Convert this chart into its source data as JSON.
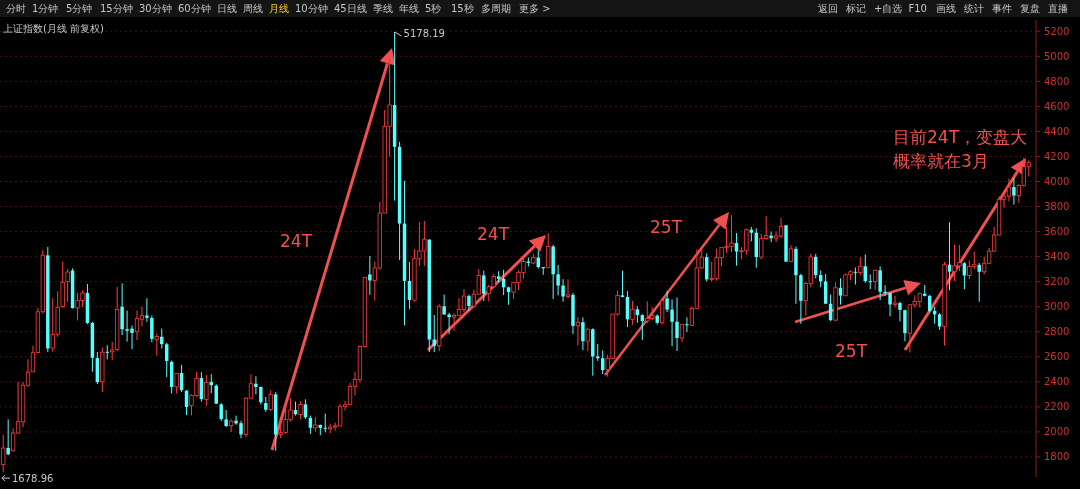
{
  "chart_data": {
    "type": "candlestick",
    "title": "上证指数(月线 前复权)",
    "ylim": [
      1640,
      5290
    ],
    "yticks": [
      1800,
      2000,
      2200,
      2400,
      2600,
      2800,
      3000,
      3200,
      3400,
      3600,
      3800,
      4000,
      4200,
      4400,
      4600,
      4800,
      5000,
      5200
    ],
    "grid": "y",
    "annotations": [
      "24T",
      "24T",
      "25T",
      "25T",
      "目前24T，变盘大概率就在3月",
      "5178.19",
      "1678.96",
      "分时",
      "1分钟",
      "5分钟",
      "15分钟",
      "30分钟",
      "60分钟",
      "日线",
      "周线",
      "月线",
      "10分钟",
      "45日线",
      "季线",
      "年线",
      "5秒",
      "15秒",
      "多周期",
      "更多 >",
      "直播",
      "复盘",
      "事件",
      "统计",
      "画线",
      "F10",
      "+自选",
      "标记",
      "返回"
    ],
    "categories": [
      null,
      null,
      null,
      null,
      null,
      null,
      null,
      null,
      null,
      null,
      null,
      null,
      null,
      null,
      null,
      null,
      null,
      null,
      null,
      null,
      null,
      null,
      null,
      null,
      null,
      null,
      null,
      null,
      null,
      null,
      null,
      null,
      null,
      null,
      null,
      null,
      null,
      null,
      null,
      null,
      null,
      null,
      null,
      null,
      null,
      null,
      null,
      null,
      null,
      null,
      null,
      null,
      null,
      null,
      null,
      null,
      null,
      null,
      null,
      null,
      null,
      null,
      null,
      null,
      null,
      null,
      null,
      null,
      null,
      null,
      null,
      null,
      null,
      null,
      null,
      null,
      null,
      null,
      null,
      null,
      null,
      null,
      null,
      null,
      null,
      null,
      null,
      null,
      null,
      null,
      null,
      null,
      null,
      null,
      null,
      null,
      null,
      null,
      null,
      null,
      null,
      null,
      null,
      null,
      null,
      null,
      null,
      null,
      null,
      null,
      null,
      null,
      null,
      null,
      null,
      null,
      null,
      null,
      null,
      null,
      null,
      null,
      null,
      null,
      null,
      null,
      null,
      null,
      null,
      null,
      null,
      null,
      null,
      null,
      null,
      null,
      null,
      null,
      null,
      null,
      null,
      null,
      null,
      null,
      null,
      null,
      null,
      null,
      null,
      null,
      null,
      null,
      null,
      null,
      null,
      null,
      null,
      null,
      null,
      null,
      null,
      null,
      null,
      null,
      null,
      null,
      null,
      null,
      null,
      null,
      null,
      null,
      null,
      null,
      null,
      null,
      null,
      null,
      null,
      null,
      null,
      null,
      null,
      null,
      null,
      null,
      null,
      null,
      null,
      null,
      null,
      null,
      null,
      null,
      null,
      null,
      null,
      null,
      null,
      null,
      null,
      null,
      null,
      null,
      null,
      null,
      null,
      null
    ],
    "ohlc": [
      [
        1740,
        1975,
        1678.96,
        1871
      ],
      [
        1872,
        2100,
        1814,
        1821
      ],
      [
        1850,
        2029,
        1844,
        1991
      ],
      [
        1991,
        2402,
        1985,
        2082
      ],
      [
        2080,
        2400,
        2037,
        2373
      ],
      [
        2373,
        2580,
        2360,
        2477
      ],
      [
        2480,
        2688,
        2480,
        2632
      ],
      [
        2635,
        2990,
        2630,
        2959
      ],
      [
        2960,
        3454,
        2945,
        3412
      ],
      [
        3410,
        3478,
        2639,
        2667
      ],
      [
        2670,
        3068,
        2640,
        2779
      ],
      [
        2780,
        3123,
        2760,
        2995
      ],
      [
        3000,
        3361,
        2990,
        3195
      ],
      [
        3200,
        3300,
        3039,
        3277
      ],
      [
        3289,
        3306,
        2986,
        2989
      ],
      [
        2990,
        3110,
        2890,
        3051
      ],
      [
        3050,
        3130,
        2997,
        3109
      ],
      [
        3110,
        3181,
        2861,
        2870
      ],
      [
        2870,
        2880,
        2481,
        2592
      ],
      [
        2590,
        2638,
        2382,
        2398
      ],
      [
        2400,
        2673,
        2319,
        2637
      ],
      [
        2640,
        2693,
        2579,
        2638
      ],
      [
        2640,
        2720,
        2573,
        2655
      ],
      [
        2660,
        3159,
        2646,
        2979
      ],
      [
        3000,
        3186,
        2773,
        2820
      ],
      [
        2820,
        2970,
        2721,
        2808
      ],
      [
        2825,
        2850,
        2661,
        2791
      ],
      [
        2800,
        2970,
        2734,
        2905
      ],
      [
        2900,
        3000,
        2842,
        2928
      ],
      [
        2930,
        3067,
        2880,
        2911
      ],
      [
        2910,
        2930,
        2717,
        2743
      ],
      [
        2740,
        2786,
        2610,
        2762
      ],
      [
        2760,
        2826,
        2666,
        2701
      ],
      [
        2700,
        2713,
        2437,
        2567
      ],
      [
        2560,
        2570,
        2307,
        2359
      ],
      [
        2360,
        2470,
        2307,
        2468
      ],
      [
        2470,
        2536,
        2319,
        2333
      ],
      [
        2330,
        2334,
        2134,
        2199
      ],
      [
        2212,
        2300,
        2132,
        2292
      ],
      [
        2290,
        2478,
        2280,
        2428
      ],
      [
        2430,
        2478,
        2242,
        2262
      ],
      [
        2260,
        2453,
        2210,
        2396
      ],
      [
        2400,
        2461,
        2310,
        2373
      ],
      [
        2370,
        2380,
        2225,
        2225
      ],
      [
        2220,
        2230,
        2085,
        2103
      ],
      [
        2100,
        2175,
        2040,
        2047
      ],
      [
        2050,
        2100,
        1999,
        2086
      ],
      [
        2090,
        2130,
        2058,
        2068
      ],
      [
        2070,
        2090,
        1949,
        1980
      ],
      [
        1980,
        2276,
        1959,
        2269
      ],
      [
        2270,
        2460,
        2260,
        2385
      ],
      [
        2385,
        2445,
        2300,
        2359
      ],
      [
        2360,
        2360,
        2218,
        2237
      ],
      [
        2230,
        2280,
        2161,
        2177
      ],
      [
        2180,
        2334,
        2167,
        2300
      ],
      [
        2300,
        2320,
        1849,
        1979
      ],
      [
        1980,
        2093,
        1951,
        1994
      ],
      [
        1995,
        2249,
        1985,
        2098
      ],
      [
        2100,
        2270,
        2082,
        2175
      ],
      [
        2175,
        2242,
        2131,
        2141
      ],
      [
        2140,
        2245,
        2101,
        2220
      ],
      [
        2220,
        2260,
        2102,
        2116
      ],
      [
        2112,
        2131,
        1984,
        2033
      ],
      [
        2033,
        2119,
        2002,
        2056
      ],
      [
        2056,
        2058,
        1974,
        2033
      ],
      [
        2033,
        2146,
        1997,
        2026
      ],
      [
        2026,
        2062,
        1991,
        2039
      ],
      [
        2039,
        2074,
        2010,
        2048
      ],
      [
        2048,
        2222,
        2047,
        2201
      ],
      [
        2201,
        2248,
        2170,
        2217
      ],
      [
        2217,
        2391,
        2217,
        2363
      ],
      [
        2363,
        2480,
        2291,
        2420
      ],
      [
        2420,
        2688,
        2394,
        2682
      ],
      [
        2682,
        3239,
        2673,
        3235
      ],
      [
        3258,
        3406,
        3095,
        3210
      ],
      [
        3210,
        3361,
        3049,
        3310
      ],
      [
        3310,
        3835,
        3294,
        3748
      ],
      [
        3748,
        4572,
        3747,
        4441
      ],
      [
        4441,
        4986,
        4198,
        4611
      ],
      [
        4611,
        5178.19,
        3847,
        4277
      ],
      [
        4277,
        4317,
        3373,
        3664
      ],
      [
        3664,
        4006,
        2850,
        3206
      ],
      [
        3206,
        3357,
        2983,
        3053
      ],
      [
        3053,
        3459,
        3039,
        3383
      ],
      [
        3383,
        3678,
        3327,
        3445
      ],
      [
        3445,
        3684,
        3327,
        3539
      ],
      [
        3536,
        3539,
        2638,
        2738
      ],
      [
        2738,
        2934,
        2638,
        2688
      ],
      [
        2688,
        3019,
        2644,
        3004
      ],
      [
        3004,
        3097,
        2938,
        2938
      ],
      [
        2938,
        2952,
        2781,
        2917
      ],
      [
        2917,
        2946,
        2807,
        2930
      ],
      [
        2930,
        3070,
        2926,
        2979
      ],
      [
        2979,
        3140,
        2955,
        3085
      ],
      [
        3085,
        3097,
        2965,
        3005
      ],
      [
        3005,
        3136,
        2995,
        3100
      ],
      [
        3100,
        3301,
        3095,
        3250
      ],
      [
        3250,
        3289,
        3045,
        3104
      ],
      [
        3105,
        3174,
        3044,
        3159
      ],
      [
        3159,
        3260,
        3150,
        3242
      ],
      [
        3242,
        3284,
        3194,
        3223
      ],
      [
        3223,
        3295,
        3093,
        3155
      ],
      [
        3155,
        3160,
        3016,
        3117
      ],
      [
        3117,
        3200,
        3062,
        3192
      ],
      [
        3192,
        3290,
        3133,
        3273
      ],
      [
        3273,
        3390,
        3226,
        3361
      ],
      [
        3361,
        3392,
        3322,
        3349
      ],
      [
        3349,
        3420,
        3339,
        3393
      ],
      [
        3393,
        3450,
        3305,
        3317
      ],
      [
        3317,
        3317,
        3255,
        3307
      ],
      [
        3314,
        3587,
        3307,
        3481
      ],
      [
        3481,
        3495,
        3062,
        3259
      ],
      [
        3259,
        3334,
        3091,
        3169
      ],
      [
        3169,
        3220,
        3041,
        3082
      ],
      [
        3082,
        3219,
        3064,
        3095
      ],
      [
        3095,
        3110,
        2782,
        2847
      ],
      [
        2847,
        2915,
        2691,
        2876
      ],
      [
        2876,
        2915,
        2653,
        2725
      ],
      [
        2725,
        2827,
        2644,
        2821
      ],
      [
        2821,
        2827,
        2449,
        2603
      ],
      [
        2603,
        2703,
        2567,
        2588
      ],
      [
        2588,
        2651,
        2462,
        2494
      ],
      [
        2497,
        2618,
        2440,
        2585
      ],
      [
        2585,
        2942,
        2582,
        2941
      ],
      [
        2941,
        3129,
        2930,
        3091
      ],
      [
        3091,
        3288,
        3075,
        3078
      ],
      [
        3078,
        3124,
        2838,
        2899
      ],
      [
        2899,
        3046,
        2855,
        2979
      ],
      [
        2979,
        3004,
        2871,
        2933
      ],
      [
        2933,
        2940,
        2733,
        2886
      ],
      [
        2886,
        3042,
        2868,
        2905
      ],
      [
        2905,
        2996,
        2892,
        2929
      ],
      [
        2929,
        2939,
        2858,
        2872
      ],
      [
        2872,
        3050,
        2857,
        3050
      ],
      [
        3066,
        3127,
        2956,
        2977
      ],
      [
        2977,
        3058,
        2685,
        2880
      ],
      [
        2880,
        3074,
        2647,
        2750
      ],
      [
        2750,
        2861,
        2720,
        2860
      ],
      [
        2860,
        2915,
        2797,
        2852
      ],
      [
        2852,
        3001,
        2843,
        2985
      ],
      [
        2985,
        3458,
        2985,
        3310
      ],
      [
        3310,
        3455,
        3300,
        3396
      ],
      [
        3396,
        3426,
        3202,
        3218
      ],
      [
        3218,
        3358,
        3200,
        3225
      ],
      [
        3225,
        3465,
        3209,
        3392
      ],
      [
        3392,
        3474,
        3325,
        3473
      ],
      [
        3474,
        3637,
        3429,
        3483
      ],
      [
        3483,
        3732,
        3437,
        3509
      ],
      [
        3509,
        3588,
        3328,
        3441
      ],
      [
        3441,
        3475,
        3378,
        3447
      ],
      [
        3447,
        3625,
        3415,
        3615
      ],
      [
        3615,
        3637,
        3522,
        3591
      ],
      [
        3591,
        3626,
        3312,
        3397
      ],
      [
        3397,
        3582,
        3377,
        3544
      ],
      [
        3544,
        3723,
        3534,
        3568
      ],
      [
        3568,
        3600,
        3515,
        3547
      ],
      [
        3547,
        3600,
        3517,
        3564
      ],
      [
        3564,
        3708,
        3550,
        3640
      ],
      [
        3650,
        3651,
        3357,
        3361
      ],
      [
        3361,
        3491,
        3356,
        3462
      ],
      [
        3462,
        3480,
        3023,
        3252
      ],
      [
        3252,
        3263,
        2863,
        3047
      ],
      [
        3047,
        3195,
        2927,
        3186
      ],
      [
        3186,
        3424,
        3157,
        3398
      ],
      [
        3398,
        3422,
        3226,
        3253
      ],
      [
        3253,
        3290,
        3155,
        3202
      ],
      [
        3202,
        3262,
        3021,
        3024
      ],
      [
        3024,
        3097,
        2885,
        2893
      ],
      [
        2893,
        3194,
        2885,
        3151
      ],
      [
        3151,
        3226,
        3017,
        3089
      ],
      [
        3087,
        3264,
        3085,
        3255
      ],
      [
        3255,
        3291,
        3214,
        3279
      ],
      [
        3279,
        3313,
        3177,
        3272
      ],
      [
        3272,
        3396,
        3255,
        3323
      ],
      [
        3323,
        3418,
        3192,
        3204
      ],
      [
        3204,
        3258,
        3141,
        3202
      ],
      [
        3202,
        3296,
        3135,
        3291
      ],
      [
        3291,
        3322,
        3053,
        3120
      ],
      [
        3120,
        3172,
        3084,
        3110
      ],
      [
        3110,
        3111,
        2923,
        3018
      ],
      [
        3018,
        3088,
        2996,
        3029
      ],
      [
        3029,
        3040,
        2882,
        2975
      ],
      [
        2972,
        2976,
        2724,
        2789
      ],
      [
        2789,
        3020,
        2635,
        3015
      ],
      [
        3015,
        3091,
        2993,
        3041
      ],
      [
        3041,
        3113,
        2995,
        3104
      ],
      [
        3104,
        3174,
        3083,
        3087
      ],
      [
        3087,
        3093,
        2953,
        2967
      ],
      [
        2967,
        3000,
        2865,
        2939
      ],
      [
        2939,
        2949,
        2815,
        2842
      ],
      [
        2842,
        3358,
        2689,
        3336
      ],
      [
        3336,
        3674,
        3132,
        3280
      ],
      [
        3280,
        3494,
        3205,
        3326
      ],
      [
        3326,
        3494,
        3285,
        3352
      ],
      [
        3347,
        3357,
        3140,
        3250
      ],
      [
        3250,
        3370,
        3220,
        3321
      ],
      [
        3321,
        3440,
        3300,
        3335
      ],
      [
        3335,
        3350,
        3040,
        3279
      ],
      [
        3279,
        3400,
        3260,
        3347
      ],
      [
        3347,
        3470,
        3340,
        3444
      ],
      [
        3444,
        3637,
        3440,
        3573
      ],
      [
        3573,
        3883,
        3570,
        3858
      ],
      [
        3858,
        3899,
        3790,
        3883
      ],
      [
        3883,
        4025,
        3840,
        3955
      ],
      [
        3955,
        4030,
        3816,
        3888
      ],
      [
        3888,
        3980,
        3830,
        3969
      ],
      [
        3969,
        4190,
        3960,
        4118
      ],
      [
        4118,
        4170,
        4040,
        4150
      ]
    ]
  }
}
